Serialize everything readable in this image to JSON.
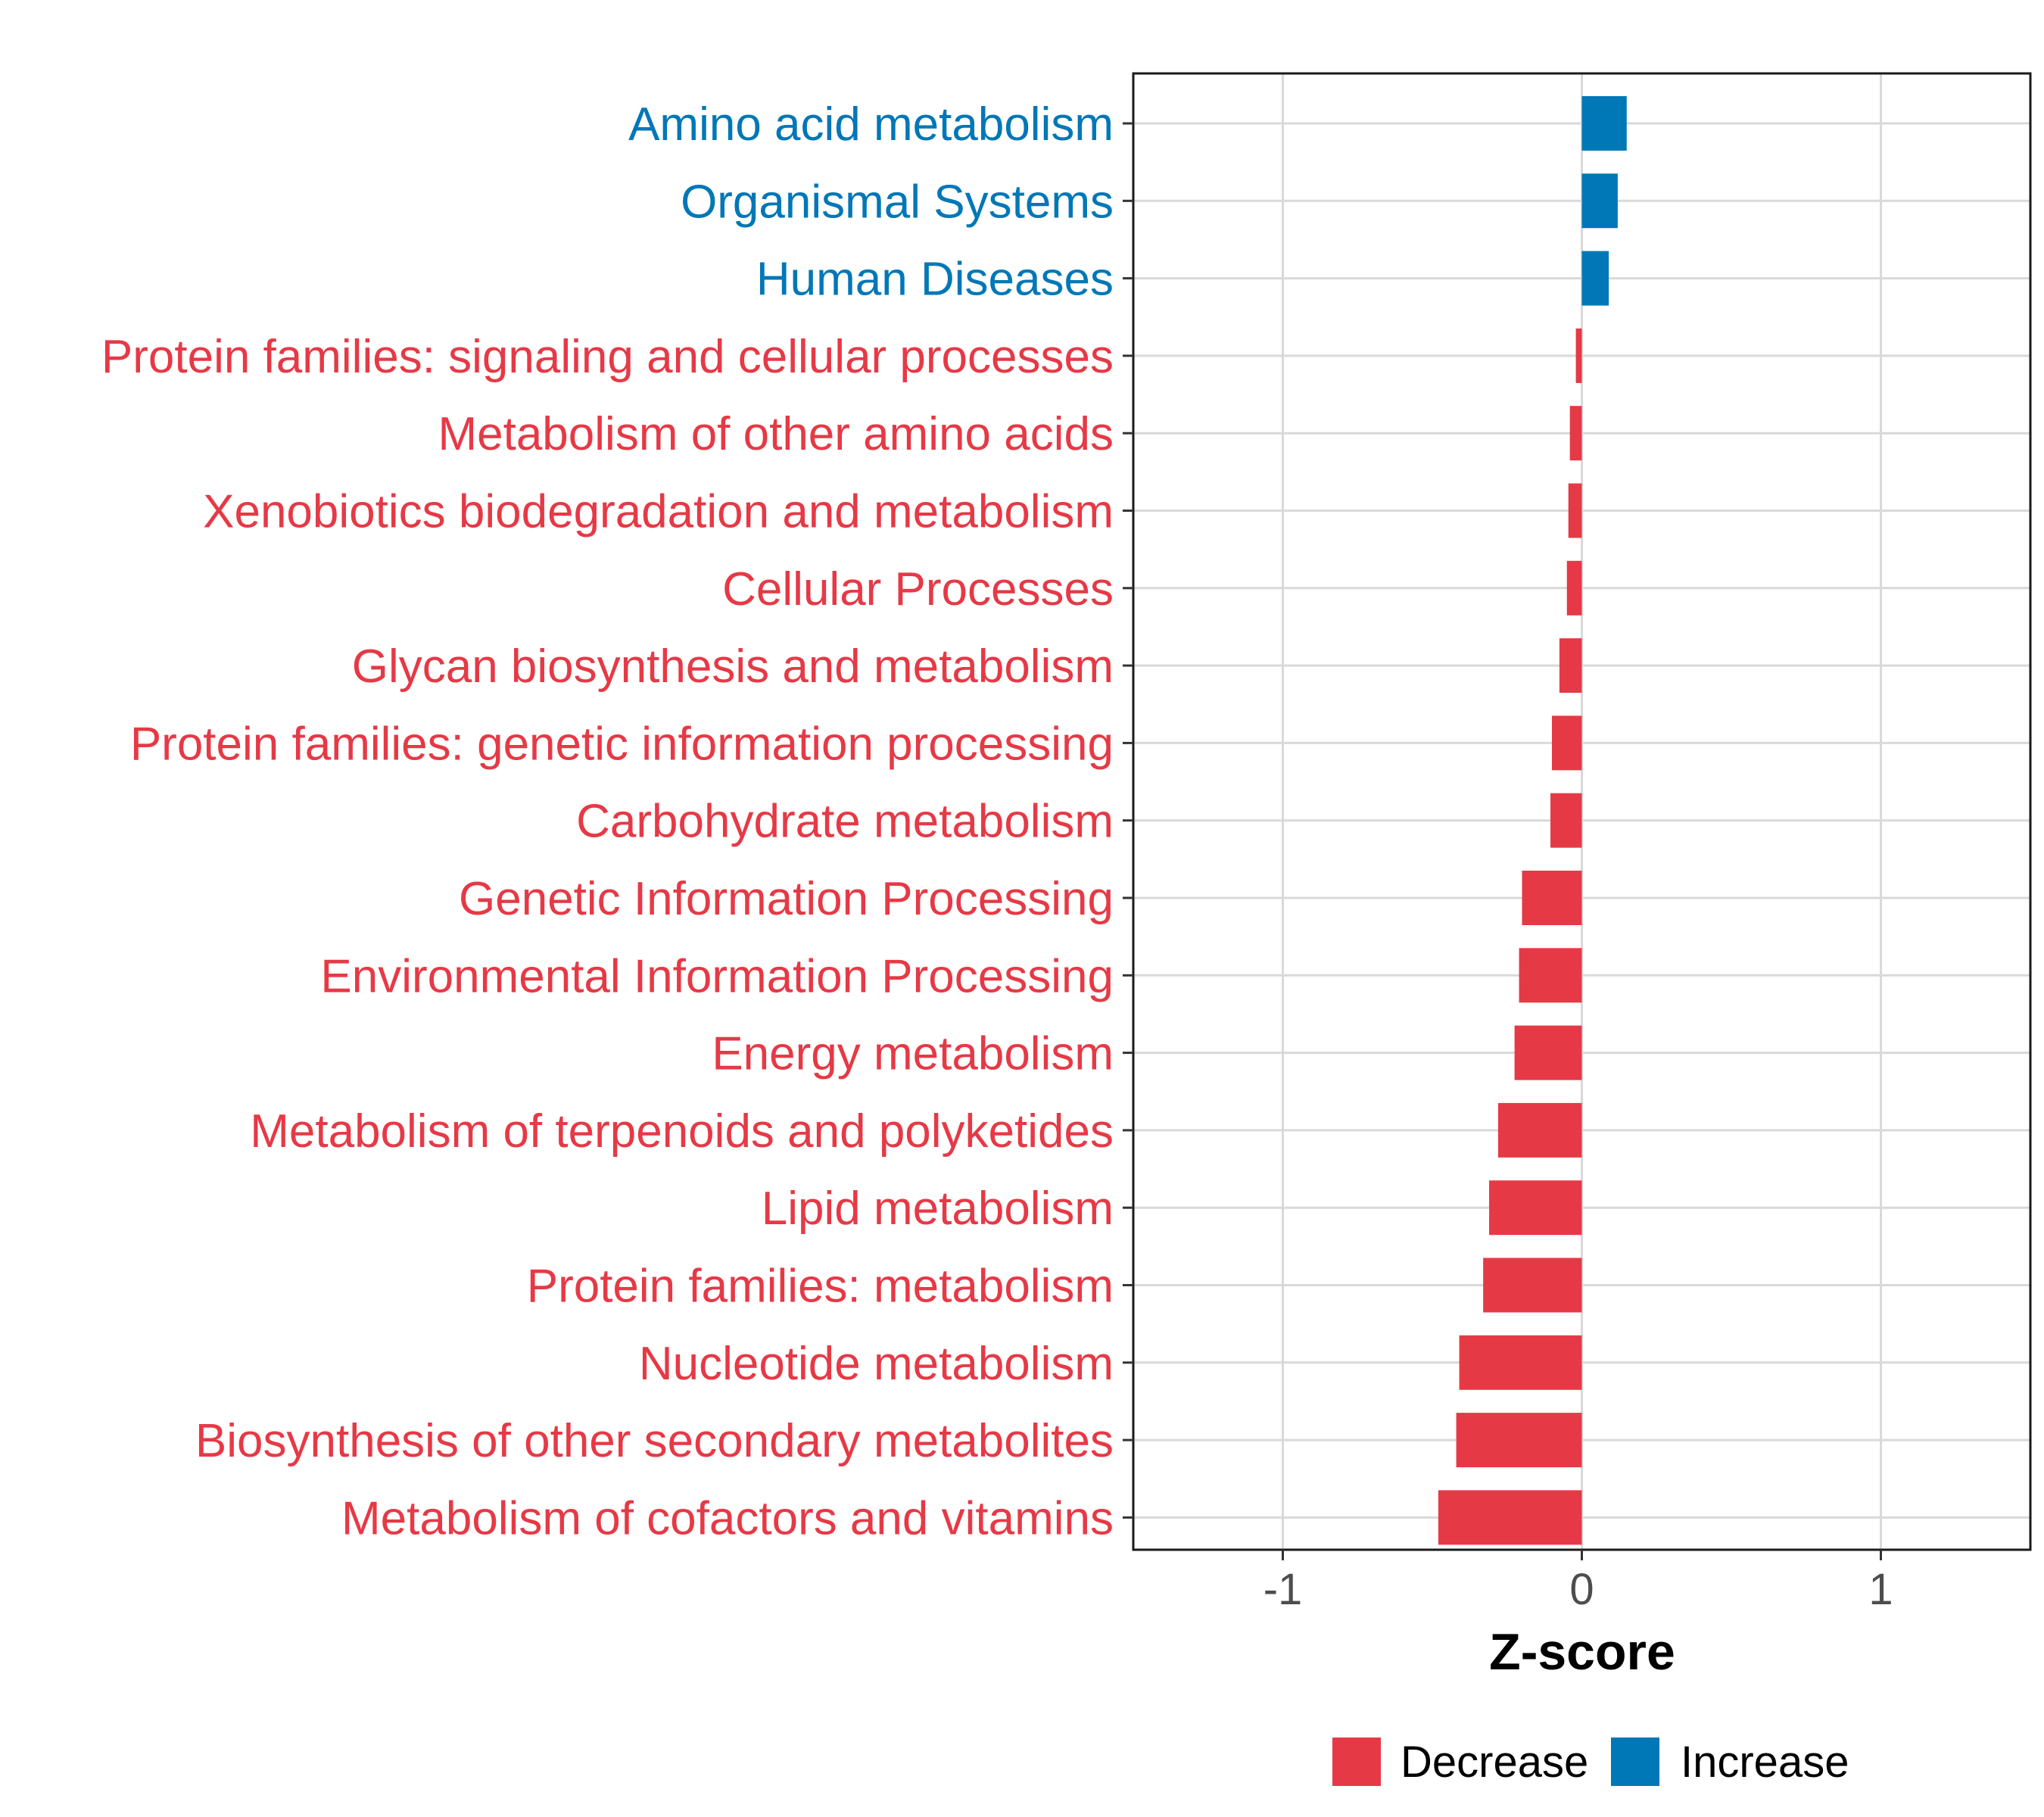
{
  "chart_data": {
    "type": "bar",
    "orientation": "horizontal",
    "xlabel": "Z-score",
    "ylabel": "",
    "xlim": [
      -1.5,
      1.5
    ],
    "x_ticks": [
      -1,
      0,
      1
    ],
    "x_tick_labels": [
      "-1",
      "0",
      "1"
    ],
    "grid": true,
    "categories": [
      "Amino acid metabolism",
      "Organismal Systems",
      "Human Diseases",
      "Protein families: signaling and cellular processes",
      "Metabolism of other amino acids",
      "Xenobiotics biodegradation and metabolism",
      "Cellular Processes",
      "Glycan biosynthesis and metabolism",
      "Protein families: genetic information processing",
      "Carbohydrate metabolism",
      "Genetic Information Processing",
      "Environmental Information Processing",
      "Energy metabolism",
      "Metabolism of terpenoids and polyketides",
      "Lipid metabolism",
      "Protein families: metabolism",
      "Nucleotide metabolism",
      "Biosynthesis of other secondary metabolites",
      "Metabolism of cofactors and vitamins"
    ],
    "values": [
      0.15,
      0.12,
      0.09,
      -0.02,
      -0.04,
      -0.045,
      -0.05,
      -0.075,
      -0.1,
      -0.105,
      -0.2,
      -0.21,
      -0.225,
      -0.28,
      -0.31,
      -0.33,
      -0.41,
      -0.42,
      -0.48
    ],
    "groups": [
      "Increase",
      "Increase",
      "Increase",
      "Decrease",
      "Decrease",
      "Decrease",
      "Decrease",
      "Decrease",
      "Decrease",
      "Decrease",
      "Decrease",
      "Decrease",
      "Decrease",
      "Decrease",
      "Decrease",
      "Decrease",
      "Decrease",
      "Decrease",
      "Decrease"
    ],
    "legend": {
      "position": "bottom",
      "entries": [
        {
          "label": "Decrease",
          "color": "#e63946"
        },
        {
          "label": "Increase",
          "color": "#0077b6"
        }
      ]
    },
    "colors": {
      "Decrease": "#e63946",
      "Increase": "#0077b6"
    }
  }
}
